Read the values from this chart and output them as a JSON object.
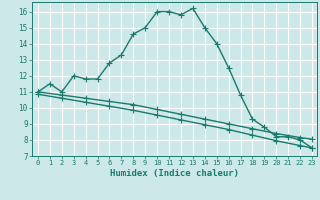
{
  "xlabel": "Humidex (Indice chaleur)",
  "bg_color": "#cce8e8",
  "grid_color": "#ffffff",
  "line_color": "#1a7a6e",
  "xlim": [
    -0.5,
    23.4
  ],
  "ylim": [
    7,
    16.6
  ],
  "xticks": [
    0,
    1,
    2,
    3,
    4,
    5,
    6,
    7,
    8,
    9,
    10,
    11,
    12,
    13,
    14,
    15,
    16,
    17,
    18,
    19,
    20,
    21,
    22,
    23
  ],
  "yticks": [
    7,
    8,
    9,
    10,
    11,
    12,
    13,
    14,
    15,
    16
  ],
  "curve1_x": [
    0,
    1,
    2,
    3,
    4,
    5,
    6,
    7,
    8,
    9,
    10,
    11,
    12,
    13,
    14,
    15,
    16,
    17,
    18,
    19,
    20,
    21,
    22,
    23
  ],
  "curve1_y": [
    11.0,
    11.5,
    11.0,
    12.0,
    11.8,
    11.8,
    12.8,
    13.3,
    14.6,
    15.0,
    16.0,
    16.0,
    15.8,
    16.2,
    15.0,
    14.0,
    12.5,
    10.8,
    9.3,
    8.8,
    8.2,
    8.2,
    8.0,
    7.5
  ],
  "line2_x": [
    0,
    2,
    4,
    6,
    8,
    10,
    12,
    14,
    16,
    18,
    20,
    22,
    23
  ],
  "line2_y": [
    11.0,
    10.8,
    10.6,
    10.4,
    10.2,
    9.9,
    9.6,
    9.3,
    9.0,
    8.7,
    8.4,
    8.15,
    8.05
  ],
  "line3_x": [
    0,
    2,
    4,
    6,
    8,
    10,
    12,
    14,
    16,
    18,
    20,
    22,
    23
  ],
  "line3_y": [
    10.85,
    10.6,
    10.35,
    10.1,
    9.85,
    9.55,
    9.25,
    8.95,
    8.65,
    8.3,
    7.95,
    7.65,
    7.5
  ],
  "marker": "+",
  "markersize": 4,
  "linewidth": 1.0,
  "tick_fontsize": 5.0,
  "xlabel_fontsize": 6.5
}
